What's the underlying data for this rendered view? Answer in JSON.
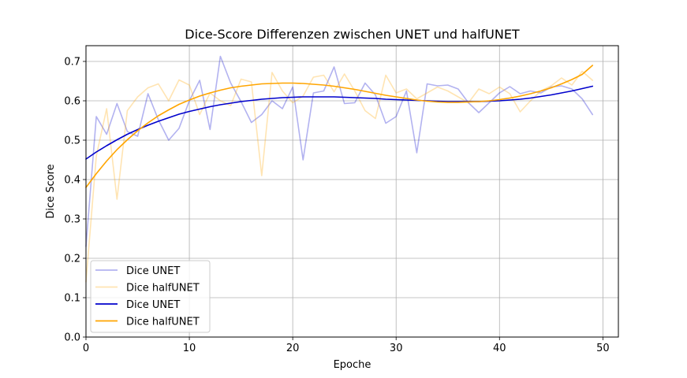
{
  "chart_data": {
    "type": "line",
    "title": "Dice-Score Differenzen zwischen UNET und halfUNET",
    "xlabel": "Epoche",
    "ylabel": "Dice Score",
    "xlim": [
      0,
      51.5
    ],
    "ylim": [
      0,
      0.74
    ],
    "xticks": [
      "0",
      "10",
      "20",
      "30",
      "40",
      "50"
    ],
    "yticks": [
      "0.0",
      "0.1",
      "0.2",
      "0.3",
      "0.4",
      "0.5",
      "0.6",
      "0.7"
    ],
    "grid": true,
    "legend_position": "bottom-left",
    "series": [
      {
        "name": "Dice UNET",
        "color": "#0000cc",
        "alpha": 0.3,
        "x": [
          0,
          1,
          2,
          3,
          4,
          5,
          6,
          7,
          8,
          9,
          10,
          11,
          12,
          13,
          14,
          15,
          16,
          17,
          18,
          19,
          20,
          21,
          22,
          23,
          24,
          25,
          26,
          27,
          28,
          29,
          30,
          31,
          32,
          33,
          34,
          35,
          36,
          37,
          38,
          39,
          40,
          41,
          42,
          43,
          44,
          45,
          46,
          47,
          48,
          49
        ],
        "y": [
          0.23,
          0.56,
          0.515,
          0.593,
          0.522,
          0.51,
          0.618,
          0.552,
          0.5,
          0.53,
          0.6,
          0.652,
          0.527,
          0.713,
          0.645,
          0.598,
          0.545,
          0.565,
          0.6,
          0.58,
          0.635,
          0.45,
          0.62,
          0.625,
          0.686,
          0.593,
          0.595,
          0.645,
          0.615,
          0.543,
          0.56,
          0.625,
          0.468,
          0.643,
          0.638,
          0.64,
          0.63,
          0.595,
          0.57,
          0.595,
          0.62,
          0.636,
          0.618,
          0.625,
          0.62,
          0.635,
          0.638,
          0.63,
          0.605,
          0.565
        ]
      },
      {
        "name": "Dice halfUNET",
        "color": "#ffa500",
        "alpha": 0.3,
        "x": [
          0,
          1,
          2,
          3,
          4,
          5,
          6,
          7,
          8,
          9,
          10,
          11,
          12,
          13,
          14,
          15,
          16,
          17,
          18,
          19,
          20,
          21,
          22,
          23,
          24,
          25,
          26,
          27,
          28,
          29,
          30,
          31,
          32,
          33,
          34,
          35,
          36,
          37,
          38,
          39,
          40,
          41,
          42,
          43,
          44,
          45,
          46,
          47,
          48,
          49
        ],
        "y": [
          0.14,
          0.46,
          0.58,
          0.35,
          0.575,
          0.61,
          0.633,
          0.643,
          0.6,
          0.653,
          0.64,
          0.565,
          0.62,
          0.6,
          0.588,
          0.655,
          0.648,
          0.41,
          0.672,
          0.625,
          0.595,
          0.612,
          0.66,
          0.665,
          0.623,
          0.668,
          0.625,
          0.575,
          0.555,
          0.665,
          0.62,
          0.63,
          0.605,
          0.62,
          0.635,
          0.625,
          0.61,
          0.595,
          0.63,
          0.618,
          0.635,
          0.618,
          0.572,
          0.6,
          0.625,
          0.638,
          0.658,
          0.64,
          0.675,
          0.652
        ]
      },
      {
        "name": "Dice UNET",
        "color": "#0000cc",
        "alpha": 1,
        "x": [
          0,
          1,
          2,
          3,
          4,
          5,
          6,
          7,
          8,
          9,
          10,
          11,
          12,
          13,
          14,
          15,
          16,
          17,
          18,
          19,
          20,
          21,
          22,
          23,
          24,
          25,
          26,
          27,
          28,
          29,
          30,
          31,
          32,
          33,
          34,
          35,
          36,
          37,
          38,
          39,
          40,
          41,
          42,
          43,
          44,
          45,
          46,
          47,
          48,
          49
        ],
        "y": [
          0.452,
          0.47,
          0.486,
          0.501,
          0.515,
          0.527,
          0.538,
          0.548,
          0.557,
          0.566,
          0.573,
          0.579,
          0.585,
          0.59,
          0.594,
          0.598,
          0.601,
          0.604,
          0.606,
          0.608,
          0.609,
          0.61,
          0.61,
          0.61,
          0.61,
          0.609,
          0.608,
          0.607,
          0.606,
          0.604,
          0.603,
          0.602,
          0.601,
          0.6,
          0.599,
          0.598,
          0.598,
          0.598,
          0.598,
          0.599,
          0.6,
          0.602,
          0.604,
          0.607,
          0.611,
          0.615,
          0.62,
          0.625,
          0.631,
          0.637
        ]
      },
      {
        "name": "Dice halfUNET",
        "color": "#ffa500",
        "alpha": 1,
        "x": [
          0,
          1,
          2,
          3,
          4,
          5,
          6,
          7,
          8,
          9,
          10,
          11,
          12,
          13,
          14,
          15,
          16,
          17,
          18,
          19,
          20,
          21,
          22,
          23,
          24,
          25,
          26,
          27,
          28,
          29,
          30,
          31,
          32,
          33,
          34,
          35,
          36,
          37,
          38,
          39,
          40,
          41,
          42,
          43,
          44,
          45,
          46,
          47,
          48,
          49
        ],
        "y": [
          0.38,
          0.415,
          0.447,
          0.476,
          0.501,
          0.524,
          0.544,
          0.562,
          0.577,
          0.591,
          0.602,
          0.612,
          0.62,
          0.627,
          0.633,
          0.637,
          0.64,
          0.643,
          0.644,
          0.645,
          0.645,
          0.644,
          0.642,
          0.64,
          0.637,
          0.633,
          0.629,
          0.624,
          0.619,
          0.614,
          0.61,
          0.606,
          0.602,
          0.599,
          0.597,
          0.596,
          0.596,
          0.597,
          0.598,
          0.6,
          0.603,
          0.607,
          0.612,
          0.618,
          0.625,
          0.633,
          0.643,
          0.654,
          0.667,
          0.69
        ]
      }
    ]
  }
}
